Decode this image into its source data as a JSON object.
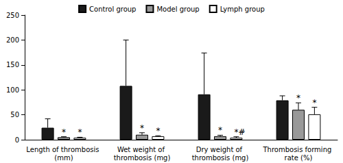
{
  "chart_data": {
    "type": "bar",
    "categories": [
      "Length of thrombosis (mm)",
      "Wet weight of thrombosis (mg)",
      "Dry weight of thrombosis (mg)",
      "Thrombosis forming rate (%)"
    ],
    "series": [
      {
        "name": "Control group",
        "color": "#1a1a1a",
        "values": [
          24,
          108,
          91,
          79
        ],
        "errors": [
          18,
          92,
          83,
          9
        ]
      },
      {
        "name": "Model group",
        "color": "#999999",
        "values": [
          5,
          10,
          7,
          60
        ],
        "errors": [
          1,
          4,
          2,
          14
        ],
        "annotations": [
          "*",
          "*",
          "*",
          "*"
        ]
      },
      {
        "name": "Lymph group",
        "color": "#ffffff",
        "values": [
          4,
          7,
          4,
          51
        ],
        "errors": [
          1,
          1,
          2,
          14
        ],
        "annotations": [
          "*",
          "*",
          "*#",
          "*"
        ]
      }
    ],
    "ylim": [
      0,
      250
    ],
    "yticks": [
      0,
      50,
      100,
      150,
      200,
      250
    ],
    "grid": false,
    "legend": "top"
  }
}
